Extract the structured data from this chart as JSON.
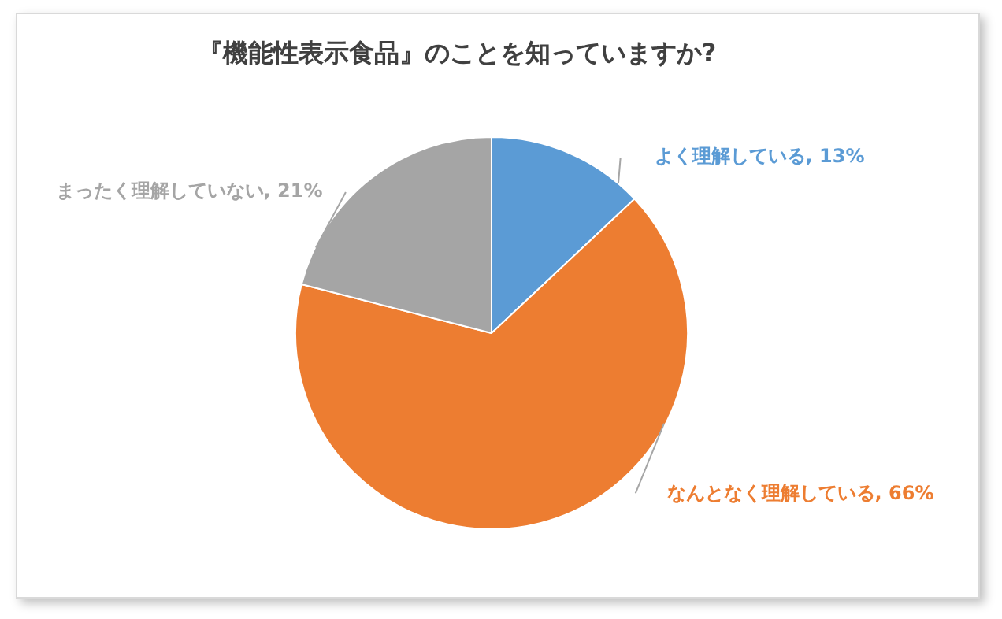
{
  "chart_data": {
    "type": "pie",
    "title": "『機能性表示食品』のことを知っていますか?",
    "categories": [
      "よく理解している",
      "なんとなく理解している",
      "まったく理解していない"
    ],
    "values": [
      13,
      66,
      21
    ],
    "colors": [
      "#5b9bd5",
      "#ed7d31",
      "#a5a5a5"
    ],
    "value_labels": [
      "13%",
      "66%",
      "21%"
    ],
    "legend": false
  }
}
